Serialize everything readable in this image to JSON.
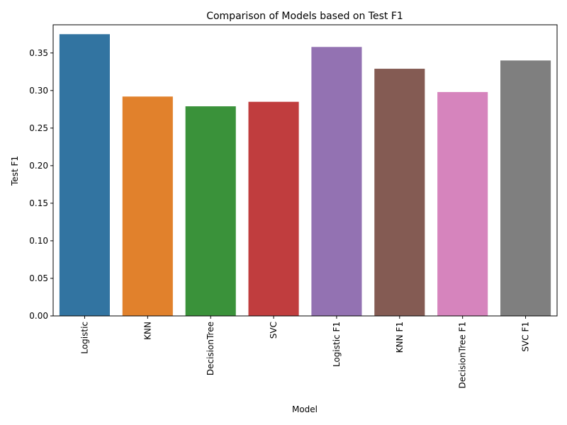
{
  "chart_data": {
    "type": "bar",
    "title": "Comparison of Models based on Test F1",
    "xlabel": "Model",
    "ylabel": "Test F1",
    "categories": [
      "Logistic",
      "KNN",
      "DecisionTree",
      "SVC",
      "Logistic F1",
      "KNN F1",
      "DecisionTree F1",
      "SVC F1"
    ],
    "values": [
      0.375,
      0.292,
      0.279,
      0.285,
      0.358,
      0.329,
      0.298,
      0.34
    ],
    "colors": [
      "#3274a1",
      "#e1812c",
      "#3a923a",
      "#c03d3e",
      "#9372b2",
      "#845b53",
      "#d684bd",
      "#7f7f7f"
    ],
    "ylim": [
      0,
      0.3875
    ],
    "yticks": [
      0.0,
      0.05,
      0.1,
      0.15,
      0.2,
      0.25,
      0.3,
      0.35
    ],
    "ytick_labels": [
      "0.00",
      "0.05",
      "0.10",
      "0.15",
      "0.20",
      "0.25",
      "0.30",
      "0.35"
    ],
    "grid": false,
    "legend": "none"
  }
}
